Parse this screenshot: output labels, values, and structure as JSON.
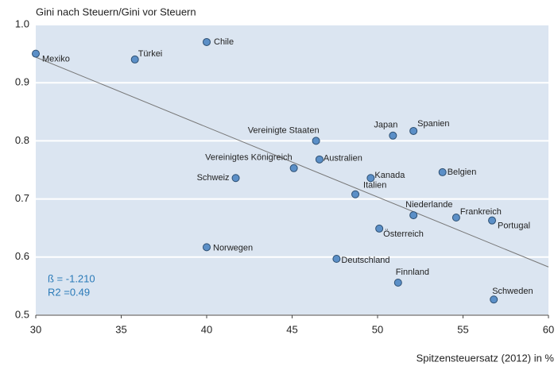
{
  "chart_data": {
    "type": "scatter",
    "y_label": "Gini nach Steuern/Gini vor Steuern",
    "x_label": "Spitzensteuersatz (2012) in %",
    "labels": [
      "Mexiko",
      "Türkei",
      "Chile",
      "Vereinigte Staaten",
      "Japan",
      "Spanien",
      "Vereinigtes Königreich",
      "Australien",
      "Schweiz",
      "Kanada",
      "Belgien",
      "Italien",
      "Niederlande",
      "Frankreich",
      "Portugal",
      "Österreich",
      "Norwegen",
      "Deutschland",
      "Finnland",
      "Schweden"
    ],
    "x": [
      30.0,
      35.8,
      40.0,
      46.4,
      50.9,
      52.1,
      45.1,
      46.6,
      41.7,
      49.6,
      53.8,
      48.7,
      52.1,
      54.6,
      56.7,
      50.1,
      40.0,
      47.6,
      51.2,
      56.8
    ],
    "values": [
      0.95,
      0.94,
      0.97,
      0.8,
      0.809,
      0.817,
      0.753,
      0.768,
      0.736,
      0.736,
      0.746,
      0.708,
      0.672,
      0.668,
      0.663,
      0.649,
      0.617,
      0.597,
      0.556,
      0.527
    ],
    "color": "#5b8fc7",
    "trendline": {
      "x": [
        30,
        60
      ],
      "y": [
        0.944,
        0.583
      ],
      "color": "#777777"
    },
    "annotations": [
      "ß = -1.210",
      "R2 =0.49"
    ],
    "xlim": [
      30,
      60
    ],
    "xticks": [
      30,
      35,
      40,
      45,
      50,
      55,
      60
    ],
    "ylim": [
      0.5,
      1.0
    ],
    "yticks": [
      0.5,
      0.6,
      0.7,
      0.8,
      0.9,
      {
        "value": 1.0,
        "label": "1.0"
      }
    ],
    "grid": true
  }
}
